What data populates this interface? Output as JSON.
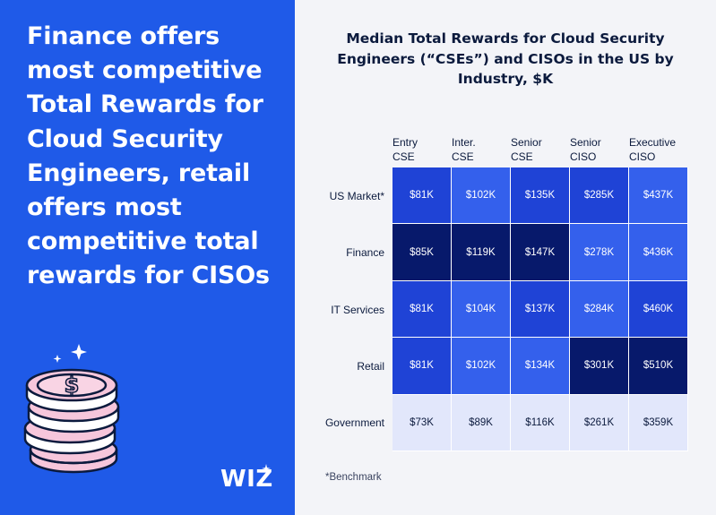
{
  "headline": "Finance offers most competitive Total Rewards for Cloud Security Engineers, retail offers most competitive total rewards for CISOs",
  "brand": {
    "logo_text": "WIZ",
    "accent": "#1f5ae8"
  },
  "icons": [
    "coin-stack-icon",
    "sparkle-icon"
  ],
  "chart_data": {
    "type": "heatmap",
    "title": "Median Total Rewards for Cloud Security Engineers (“CSEs”) and CISOs in the US by Industry, $K",
    "columns": [
      "Entry\nCSE",
      "Inter.\nCSE",
      "Senior\nCSE",
      "Senior\nCISO",
      "Executive\nCISO"
    ],
    "rows": [
      "US Market*",
      "Finance",
      "IT Services",
      "Retail",
      "Government"
    ],
    "labels": [
      [
        "$81K",
        "$102K",
        "$135K",
        "$285K",
        "$437K"
      ],
      [
        "$85K",
        "$119K",
        "$147K",
        "$278K",
        "$436K"
      ],
      [
        "$81K",
        "$104K",
        "$137K",
        "$284K",
        "$460K"
      ],
      [
        "$81K",
        "$102K",
        "$134K",
        "$301K",
        "$510K"
      ],
      [
        "$73K",
        "$89K",
        "$116K",
        "$261K",
        "$359K"
      ]
    ],
    "values": [
      [
        81,
        102,
        135,
        285,
        437
      ],
      [
        85,
        119,
        147,
        278,
        436
      ],
      [
        81,
        104,
        137,
        284,
        460
      ],
      [
        81,
        102,
        134,
        301,
        510
      ],
      [
        73,
        89,
        116,
        261,
        359
      ]
    ],
    "color_scale": [
      "#e2e7fb",
      "#a9b9f5",
      "#5f83f0",
      "#3460ec",
      "#1f43d6",
      "#0e2a9e",
      "#07196b"
    ],
    "footnote": "*Benchmark"
  }
}
